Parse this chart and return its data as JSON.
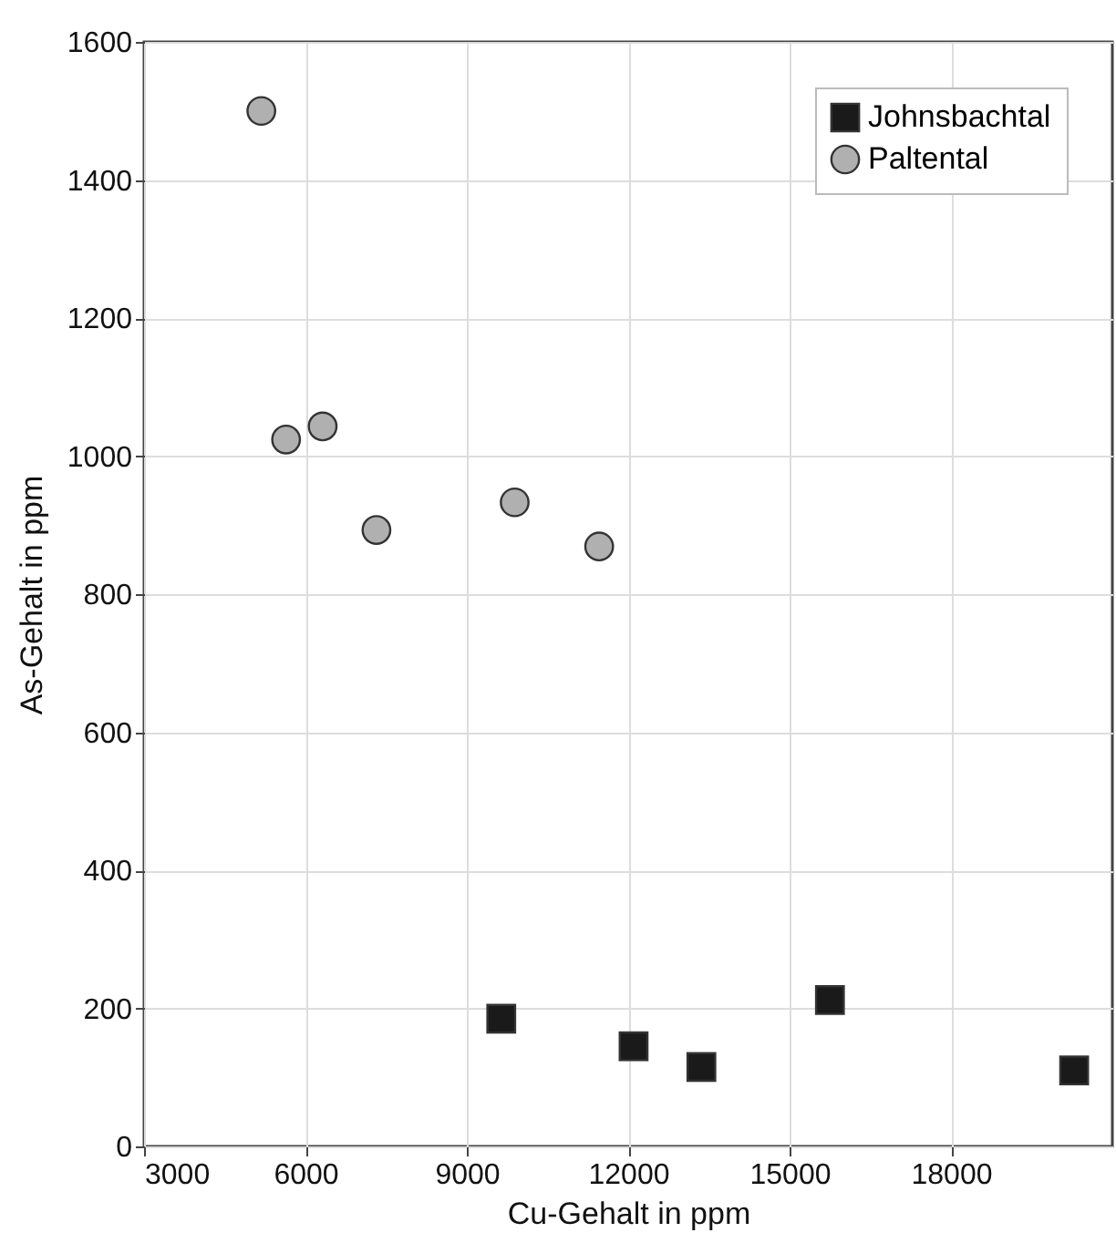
{
  "chart_data": {
    "type": "scatter",
    "xlabel": "Cu-Gehalt in ppm",
    "ylabel": "As-Gehalt in ppm",
    "xlim": [
      3000,
      21000
    ],
    "xticks": [
      3000,
      6000,
      9000,
      12000,
      15000,
      18000
    ],
    "ylim": [
      0,
      1600
    ],
    "yticks": [
      0,
      200,
      400,
      600,
      800,
      1000,
      1200,
      1400,
      1600
    ],
    "grid": true,
    "legend": "top right",
    "series": [
      {
        "name": "Johnsbachtal",
        "color": "#1a1a1a",
        "marker": "square",
        "x": [
          9640,
          12100,
          13360,
          15750,
          20290
        ],
        "values": [
          185,
          145,
          115,
          212,
          110
        ]
      },
      {
        "name": "Paltental",
        "color": "#b0b0b0",
        "marker": "circle",
        "x": [
          5180,
          5640,
          6320,
          7320,
          9890,
          11460
        ],
        "values": [
          1500,
          1024,
          1043,
          893,
          933,
          869
        ]
      }
    ]
  }
}
